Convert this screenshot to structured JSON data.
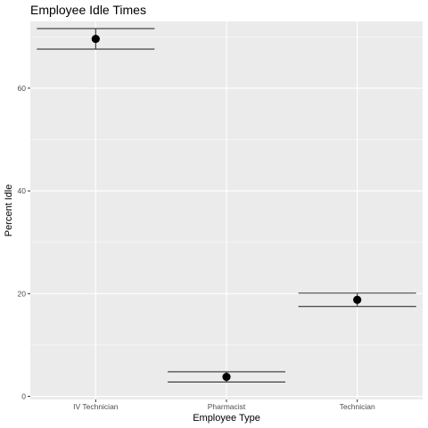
{
  "chart_data": {
    "type": "errorbar",
    "title": "Employee Idle Times",
    "xlabel": "Employee Type",
    "ylabel": "Percent Idle",
    "categories": [
      "IV Technician",
      "Pharmacist",
      "Technician"
    ],
    "points": [
      {
        "category": "IV Technician",
        "mean": 69.6,
        "lower": 67.6,
        "upper": 71.6
      },
      {
        "category": "Pharmacist",
        "mean": 3.8,
        "lower": 2.8,
        "upper": 4.8
      },
      {
        "category": "Technician",
        "mean": 18.8,
        "lower": 17.5,
        "upper": 20.1
      }
    ],
    "yticks": [
      0,
      20,
      40,
      60
    ],
    "ylim": [
      -0.6,
      73
    ],
    "grid": true,
    "legend": "none",
    "colors": {
      "panel": "#ebebeb",
      "grid": "#ffffff",
      "point": "#000000",
      "errorbar": "#333333"
    }
  }
}
